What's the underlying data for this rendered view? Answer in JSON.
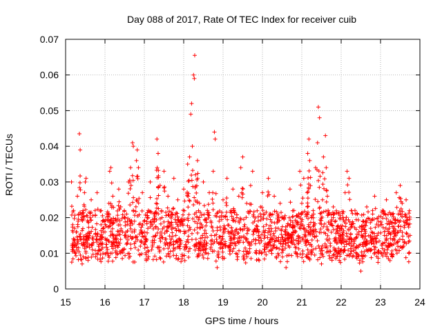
{
  "chart_data": {
    "type": "scatter",
    "title": "Day 088 of 2017, Rate Of TEC Index for receiver cuib",
    "xlabel": "GPS time / hours",
    "ylabel": "ROTI / TECUs",
    "xlim": [
      15,
      24
    ],
    "ylim": [
      0,
      0.07
    ],
    "x_ticks": [
      15,
      16,
      17,
      18,
      19,
      20,
      21,
      22,
      23,
      24
    ],
    "x_tick_labels": [
      "15",
      "16",
      "17",
      "18",
      "19",
      "20",
      "21",
      "22",
      "23",
      "24"
    ],
    "y_ticks": [
      0,
      0.01,
      0.02,
      0.03,
      0.04,
      0.05,
      0.06,
      0.07
    ],
    "y_tick_labels": [
      "0",
      "0.01",
      "0.02",
      "0.03",
      "0.04",
      "0.05",
      "0.06",
      "0.07"
    ],
    "grid": true,
    "marker": "plus",
    "marker_color": "#ff0000",
    "data_range_x": [
      15.15,
      23.75
    ],
    "series": [
      {
        "name": "ROTI",
        "points": [
          [
            15.15,
            0.03
          ],
          [
            15.18,
            0.018
          ],
          [
            15.2,
            0.022
          ],
          [
            15.22,
            0.012
          ],
          [
            15.25,
            0.01
          ],
          [
            15.28,
            0.016
          ],
          [
            15.3,
            0.026
          ],
          [
            15.33,
            0.021
          ],
          [
            15.35,
            0.0435
          ],
          [
            15.37,
            0.039
          ],
          [
            15.4,
            0.014
          ],
          [
            15.42,
            0.007
          ],
          [
            15.45,
            0.009
          ],
          [
            15.48,
            0.027
          ],
          [
            15.5,
            0.03
          ],
          [
            15.52,
            0.031
          ],
          [
            15.55,
            0.012
          ],
          [
            15.57,
            0.008
          ],
          [
            15.6,
            0.015
          ],
          [
            15.62,
            0.02
          ],
          [
            15.65,
            0.025
          ],
          [
            15.68,
            0.011
          ],
          [
            15.7,
            0.014
          ],
          [
            15.75,
            0.022
          ],
          [
            15.8,
            0.027
          ],
          [
            15.85,
            0.012
          ],
          [
            15.9,
            0.018
          ],
          [
            15.95,
            0.01
          ],
          [
            16.0,
            0.016
          ],
          [
            16.05,
            0.021
          ],
          [
            16.1,
            0.024
          ],
          [
            16.12,
            0.033
          ],
          [
            16.15,
            0.034
          ],
          [
            16.2,
            0.026
          ],
          [
            16.25,
            0.013
          ],
          [
            16.3,
            0.019
          ],
          [
            16.35,
            0.028
          ],
          [
            16.4,
            0.023
          ],
          [
            16.45,
            0.011
          ],
          [
            16.5,
            0.015
          ],
          [
            16.55,
            0.021
          ],
          [
            16.6,
            0.03
          ],
          [
            16.65,
            0.034
          ],
          [
            16.7,
            0.041
          ],
          [
            16.72,
            0.04
          ],
          [
            16.75,
            0.019
          ],
          [
            16.8,
            0.036
          ],
          [
            16.82,
            0.039
          ],
          [
            16.85,
            0.034
          ],
          [
            16.9,
            0.012
          ],
          [
            16.95,
            0.027
          ],
          [
            17.0,
            0.016
          ],
          [
            17.05,
            0.008
          ],
          [
            17.1,
            0.022
          ],
          [
            17.15,
            0.03
          ],
          [
            17.2,
            0.018
          ],
          [
            17.25,
            0.013
          ],
          [
            17.3,
            0.024
          ],
          [
            17.32,
            0.042
          ],
          [
            17.35,
            0.038
          ],
          [
            17.4,
            0.029
          ],
          [
            17.45,
            0.02
          ],
          [
            17.5,
            0.033
          ],
          [
            17.55,
            0.014
          ],
          [
            17.6,
            0.026
          ],
          [
            17.65,
            0.009
          ],
          [
            17.7,
            0.021
          ],
          [
            17.75,
            0.031
          ],
          [
            17.8,
            0.015
          ],
          [
            17.85,
            0.025
          ],
          [
            17.9,
            0.012
          ],
          [
            17.95,
            0.019
          ],
          [
            18.0,
            0.028
          ],
          [
            18.05,
            0.016
          ],
          [
            18.1,
            0.035
          ],
          [
            18.15,
            0.037
          ],
          [
            18.18,
            0.049
          ],
          [
            18.2,
            0.052
          ],
          [
            18.22,
            0.04
          ],
          [
            18.25,
            0.06
          ],
          [
            18.27,
            0.059
          ],
          [
            18.28,
            0.0655
          ],
          [
            18.3,
            0.032
          ],
          [
            18.35,
            0.036
          ],
          [
            18.4,
            0.024
          ],
          [
            18.45,
            0.018
          ],
          [
            18.5,
            0.03
          ],
          [
            18.55,
            0.011
          ],
          [
            18.6,
            0.022
          ],
          [
            18.65,
            0.027
          ],
          [
            18.7,
            0.015
          ],
          [
            18.75,
            0.033
          ],
          [
            18.78,
            0.044
          ],
          [
            18.8,
            0.042
          ],
          [
            18.85,
            0.006
          ],
          [
            18.9,
            0.019
          ],
          [
            18.95,
            0.013
          ],
          [
            19.0,
            0.025
          ],
          [
            19.05,
            0.017
          ],
          [
            19.1,
            0.031
          ],
          [
            19.15,
            0.012
          ],
          [
            19.2,
            0.022
          ],
          [
            19.25,
            0.028
          ],
          [
            19.3,
            0.016
          ],
          [
            19.35,
            0.02
          ],
          [
            19.4,
            0.026
          ],
          [
            19.45,
            0.034
          ],
          [
            19.5,
            0.037
          ],
          [
            19.55,
            0.018
          ],
          [
            19.6,
            0.024
          ],
          [
            19.65,
            0.013
          ],
          [
            19.7,
            0.029
          ],
          [
            19.75,
            0.033
          ],
          [
            19.8,
            0.019
          ],
          [
            19.85,
            0.01
          ],
          [
            19.9,
            0.015
          ],
          [
            19.95,
            0.023
          ],
          [
            20.0,
            0.027
          ],
          [
            20.05,
            0.012
          ],
          [
            20.1,
            0.018
          ],
          [
            20.15,
            0.031
          ],
          [
            20.2,
            0.021
          ],
          [
            20.25,
            0.014
          ],
          [
            20.3,
            0.026
          ],
          [
            20.35,
            0.009
          ],
          [
            20.4,
            0.017
          ],
          [
            20.45,
            0.024
          ],
          [
            20.5,
            0.011
          ],
          [
            20.55,
            0.02
          ],
          [
            20.6,
            0.006
          ],
          [
            20.65,
            0.015
          ],
          [
            20.7,
            0.028
          ],
          [
            20.75,
            0.013
          ],
          [
            20.8,
            0.022
          ],
          [
            20.85,
            0.01
          ],
          [
            20.9,
            0.018
          ],
          [
            20.95,
            0.033
          ],
          [
            21.0,
            0.024
          ],
          [
            21.05,
            0.031
          ],
          [
            21.1,
            0.016
          ],
          [
            21.15,
            0.038
          ],
          [
            21.18,
            0.042
          ],
          [
            21.2,
            0.036
          ],
          [
            21.25,
            0.012
          ],
          [
            21.3,
            0.021
          ],
          [
            21.35,
            0.034
          ],
          [
            21.4,
            0.041
          ],
          [
            21.42,
            0.051
          ],
          [
            21.45,
            0.048
          ],
          [
            21.5,
            0.007
          ],
          [
            21.55,
            0.037
          ],
          [
            21.6,
            0.043
          ],
          [
            21.62,
            0.034
          ],
          [
            21.65,
            0.026
          ],
          [
            21.7,
            0.014
          ],
          [
            21.75,
            0.019
          ],
          [
            21.8,
            0.023
          ],
          [
            21.85,
            0.011
          ],
          [
            21.9,
            0.016
          ],
          [
            21.95,
            0.008
          ],
          [
            22.0,
            0.013
          ],
          [
            22.05,
            0.02
          ],
          [
            22.1,
            0.027
          ],
          [
            22.15,
            0.033
          ],
          [
            22.2,
            0.031
          ],
          [
            22.25,
            0.018
          ],
          [
            22.3,
            0.012
          ],
          [
            22.35,
            0.022
          ],
          [
            22.4,
            0.009
          ],
          [
            22.45,
            0.016
          ],
          [
            22.5,
            0.005
          ],
          [
            22.55,
            0.019
          ],
          [
            22.6,
            0.014
          ],
          [
            22.65,
            0.023
          ],
          [
            22.7,
            0.011
          ],
          [
            22.75,
            0.017
          ],
          [
            22.8,
            0.021
          ],
          [
            22.85,
            0.026
          ],
          [
            22.9,
            0.013
          ],
          [
            22.95,
            0.01
          ],
          [
            23.0,
            0.018
          ],
          [
            23.05,
            0.022
          ],
          [
            23.1,
            0.015
          ],
          [
            23.15,
            0.025
          ],
          [
            23.2,
            0.012
          ],
          [
            23.25,
            0.019
          ],
          [
            23.3,
            0.009
          ],
          [
            23.35,
            0.016
          ],
          [
            23.4,
            0.027
          ],
          [
            23.45,
            0.021
          ],
          [
            23.5,
            0.029
          ],
          [
            23.55,
            0.024
          ],
          [
            23.6,
            0.013
          ],
          [
            23.65,
            0.025
          ],
          [
            23.7,
            0.018
          ],
          [
            23.72,
            0.01
          ],
          [
            23.75,
            0.015
          ]
        ]
      }
    ]
  }
}
